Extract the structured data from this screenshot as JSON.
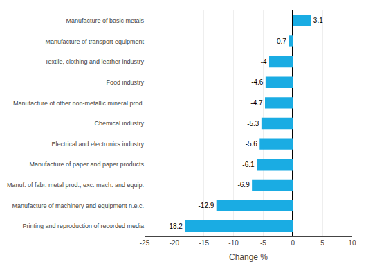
{
  "chart_data": {
    "type": "bar",
    "orientation": "horizontal",
    "categories": [
      "Printing and reproduction of recorded media",
      "Manufacture of machinery and equipment n.e.c.",
      "Manuf. of fabr. metal prod., exc. mach. and equip.",
      "Manufacture of paper and paper products",
      "Electrical and electronics industry",
      "Chemical industry",
      "Manufacture of other non-metallic mineral prod.",
      "Food industry",
      "Textile, clothing and leather industry",
      "Manufacture of transport equipment",
      "Manufacture of basic metals"
    ],
    "values": [
      -18.2,
      -12.9,
      -6.9,
      -6.1,
      -5.6,
      -5.3,
      -4.7,
      -4.6,
      -4.0,
      -0.7,
      3.1
    ],
    "color": "#1aace3",
    "xlabel": "Change %",
    "xlim": [
      -25,
      10
    ],
    "xticks": [
      -25,
      -20,
      -15,
      -10,
      -5,
      0,
      5,
      10
    ],
    "grid": true,
    "data_labels": true
  }
}
